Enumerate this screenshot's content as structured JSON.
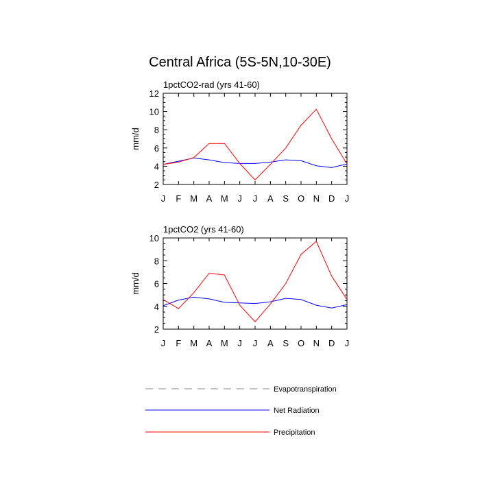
{
  "title": "Central Africa (5S-5N,10-30E)",
  "legend": [
    {
      "name": "Evapotranspiration",
      "color": "#888888",
      "dashed": true
    },
    {
      "name": "Net Radiation",
      "color": "#0000ff",
      "dashed": false
    },
    {
      "name": "Precipitation",
      "color": "#ff0000",
      "dashed": false
    }
  ],
  "chart_data": [
    {
      "type": "line",
      "title": "1pctCO2-rad (yrs 41-60)",
      "ylabel": "mm/d",
      "xlabel": "",
      "categories": [
        "J",
        "F",
        "M",
        "A",
        "M",
        "J",
        "J",
        "A",
        "S",
        "O",
        "N",
        "D",
        "J"
      ],
      "ylim": [
        2,
        12
      ],
      "yticks": [
        2,
        4,
        6,
        8,
        10,
        12
      ],
      "series": [
        {
          "name": "Net Radiation",
          "color": "#0000ff",
          "values": [
            4.2,
            4.55,
            4.9,
            4.7,
            4.4,
            4.3,
            4.3,
            4.45,
            4.7,
            4.6,
            4.05,
            3.85,
            4.25
          ]
        },
        {
          "name": "Precipitation",
          "color": "#ff0000",
          "values": [
            4.2,
            4.45,
            4.95,
            6.5,
            6.5,
            4.3,
            2.5,
            4.2,
            6.0,
            8.5,
            10.25,
            7.0,
            4.25
          ]
        }
      ]
    },
    {
      "type": "line",
      "title": "1pctCO2 (yrs 41-60)",
      "ylabel": "mm/d",
      "xlabel": "",
      "categories": [
        "J",
        "F",
        "M",
        "A",
        "M",
        "J",
        "J",
        "A",
        "S",
        "O",
        "N",
        "D",
        "J"
      ],
      "ylim": [
        2,
        10
      ],
      "yticks": [
        2,
        4,
        6,
        8,
        10
      ],
      "series": [
        {
          "name": "Net Radiation",
          "color": "#0000ff",
          "values": [
            4.05,
            4.55,
            4.8,
            4.65,
            4.35,
            4.3,
            4.25,
            4.4,
            4.7,
            4.6,
            4.1,
            3.85,
            4.15
          ]
        },
        {
          "name": "Precipitation",
          "color": "#ff0000",
          "values": [
            4.6,
            3.8,
            5.2,
            6.9,
            6.75,
            4.1,
            2.65,
            4.2,
            6.0,
            8.55,
            9.7,
            6.65,
            4.6
          ]
        }
      ]
    }
  ]
}
